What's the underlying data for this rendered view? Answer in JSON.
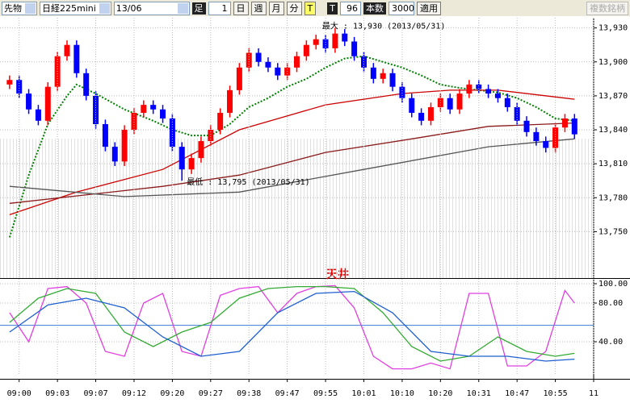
{
  "toolbar": {
    "market": "先物",
    "symbol": "日経225mini",
    "contract": "13/06",
    "bar_label": "足",
    "bar_size": "1",
    "buttons": [
      "日",
      "週",
      "月",
      "分",
      "T"
    ],
    "tick_label": "T",
    "tick_count": "96",
    "count_label": "本数",
    "count": "3000",
    "apply": "適用",
    "multi": "複数銘柄"
  },
  "chart_data": [
    {
      "type": "candlestick",
      "up_color": "#ff0000",
      "down_color": "#0000ff",
      "xlim": [
        -1,
        61
      ],
      "ylim": [
        13709,
        13939
      ],
      "grid": true,
      "yticks": [
        {
          "value": 13930,
          "label": "13,930"
        },
        {
          "value": 13900,
          "label": "13,900"
        },
        {
          "value": 13870,
          "label": "13,870"
        },
        {
          "value": 13840,
          "label": "13,840"
        },
        {
          "value": 13810,
          "label": "13,810"
        },
        {
          "value": 13780,
          "label": "13,780"
        },
        {
          "value": 13750,
          "label": "13,750"
        }
      ],
      "open": [
        13880,
        13884,
        13872,
        13858,
        13848,
        13878,
        13905,
        13915,
        13890,
        13870,
        13845,
        13825,
        13812,
        13840,
        13855,
        13862,
        13858,
        13850,
        13825,
        13805,
        13815,
        13830,
        13840,
        13855,
        13875,
        13895,
        13908,
        13900,
        13895,
        13888,
        13895,
        13905,
        13915,
        13920,
        13912,
        13925,
        13918,
        13905,
        13895,
        13885,
        13890,
        13878,
        13868,
        13855,
        13848,
        13860,
        13868,
        13858,
        13872,
        13880,
        13876,
        13872,
        13868,
        13860,
        13848,
        13838,
        13830,
        13824,
        13842,
        13850
      ],
      "high": [
        13888,
        13888,
        13876,
        13862,
        13882,
        13909,
        13919,
        13919,
        13894,
        13874,
        13849,
        13829,
        13844,
        13859,
        13866,
        13866,
        13862,
        13854,
        13829,
        13819,
        13834,
        13844,
        13859,
        13879,
        13899,
        13912,
        13912,
        13904,
        13899,
        13899,
        13909,
        13919,
        13924,
        13924,
        13930,
        13929,
        13922,
        13909,
        13899,
        13894,
        13894,
        13882,
        13872,
        13859,
        13864,
        13872,
        13872,
        13876,
        13884,
        13884,
        13880,
        13876,
        13872,
        13864,
        13852,
        13842,
        13834,
        13846,
        13854,
        13854
      ],
      "low": [
        13876,
        13868,
        13854,
        13844,
        13844,
        13874,
        13901,
        13886,
        13866,
        13841,
        13821,
        13808,
        13808,
        13836,
        13851,
        13854,
        13846,
        13821,
        13795,
        13801,
        13811,
        13826,
        13836,
        13851,
        13871,
        13891,
        13896,
        13891,
        13884,
        13884,
        13891,
        13901,
        13911,
        13908,
        13908,
        13914,
        13901,
        13891,
        13881,
        13881,
        13874,
        13864,
        13851,
        13844,
        13844,
        13856,
        13854,
        13854,
        13868,
        13872,
        13868,
        13864,
        13856,
        13844,
        13834,
        13826,
        13820,
        13820,
        13838,
        13832
      ],
      "close": [
        13884,
        13872,
        13858,
        13848,
        13878,
        13905,
        13915,
        13890,
        13870,
        13845,
        13825,
        13812,
        13840,
        13855,
        13862,
        13858,
        13850,
        13825,
        13805,
        13815,
        13830,
        13840,
        13855,
        13875,
        13895,
        13908,
        13900,
        13895,
        13888,
        13895,
        13905,
        13915,
        13920,
        13912,
        13925,
        13918,
        13905,
        13895,
        13885,
        13890,
        13878,
        13868,
        13855,
        13848,
        13860,
        13868,
        13858,
        13872,
        13880,
        13876,
        13872,
        13868,
        13860,
        13848,
        13838,
        13830,
        13824,
        13842,
        13850,
        13836
      ],
      "series": [
        {
          "color": "#008000",
          "dash": true,
          "x": [
            0,
            2,
            4,
            6,
            7,
            9,
            12,
            15,
            17,
            19,
            21,
            23,
            25,
            27,
            29,
            31,
            33,
            35,
            37,
            39,
            41,
            43,
            45,
            47,
            49,
            51,
            53,
            55,
            57,
            59
          ],
          "values": [
            13745,
            13800,
            13845,
            13870,
            13880,
            13872,
            13858,
            13848,
            13840,
            13835,
            13835,
            13845,
            13860,
            13868,
            13878,
            13885,
            13895,
            13903,
            13905,
            13900,
            13895,
            13888,
            13880,
            13877,
            13875,
            13873,
            13868,
            13860,
            13850,
            13848
          ]
        },
        {
          "color": "#cc0000",
          "dash": false,
          "x": [
            0,
            7,
            16,
            24,
            33,
            41,
            46,
            51,
            58,
            59
          ],
          "values": [
            13765,
            13785,
            13805,
            13840,
            13862,
            13872,
            13875,
            13875,
            13868,
            13867
          ]
        },
        {
          "color": "#8b1a1a",
          "dash": false,
          "x": [
            0,
            16,
            24,
            33,
            42,
            50,
            59
          ],
          "values": [
            13775,
            13790,
            13800,
            13820,
            13832,
            13843,
            13846
          ]
        },
        {
          "color": "#555555",
          "dash": false,
          "x": [
            0,
            12,
            24,
            37,
            50,
            59
          ],
          "values": [
            13790,
            13781,
            13785,
            13805,
            13825,
            13832
          ]
        }
      ],
      "annotations": {
        "max_label": "最大 : 13,930 (2013/05/31)",
        "min_label": "最低 : 13,795 (2013/05/31)"
      }
    },
    {
      "type": "line",
      "title": "天井",
      "xlim": [
        -1,
        61
      ],
      "ylim": [
        5,
        105
      ],
      "grid": true,
      "hline": 57,
      "hline_color": "#3a7bd5",
      "yticks": [
        {
          "value": 100,
          "label": "100.00"
        },
        {
          "value": 80,
          "label": "80.00"
        },
        {
          "value": 40,
          "label": "40.00"
        }
      ],
      "xticks": [
        {
          "value": 1,
          "label": "09:00"
        },
        {
          "value": 5,
          "label": "09:03"
        },
        {
          "value": 9,
          "label": "09:07"
        },
        {
          "value": 13,
          "label": "09:12"
        },
        {
          "value": 17,
          "label": "09:20"
        },
        {
          "value": 21,
          "label": "09:27"
        },
        {
          "value": 25,
          "label": "09:38"
        },
        {
          "value": 29,
          "label": "09:47"
        },
        {
          "value": 33,
          "label": "09:55"
        },
        {
          "value": 37,
          "label": "10:01"
        },
        {
          "value": 41,
          "label": "10:10"
        },
        {
          "value": 45,
          "label": "10:20"
        },
        {
          "value": 49,
          "label": "10:31"
        },
        {
          "value": 53,
          "label": "10:47"
        },
        {
          "value": 57,
          "label": "10:55"
        },
        {
          "value": 61,
          "label": "11"
        }
      ],
      "series": [
        {
          "color": "#e040e0",
          "x": [
            0,
            2,
            4,
            6,
            8,
            10,
            12,
            14,
            16,
            18,
            20,
            22,
            24,
            26,
            28,
            30,
            32,
            34,
            36,
            38,
            40,
            42,
            44,
            46,
            48,
            50,
            52,
            54,
            56,
            58,
            59
          ],
          "values": [
            70,
            40,
            95,
            97,
            80,
            30,
            25,
            80,
            90,
            30,
            25,
            88,
            95,
            97,
            70,
            90,
            97,
            98,
            75,
            25,
            12,
            12,
            18,
            12,
            90,
            90,
            15,
            15,
            30,
            93,
            80
          ]
        },
        {
          "color": "#33aa33",
          "x": [
            0,
            3,
            6,
            9,
            12,
            15,
            18,
            21,
            24,
            27,
            30,
            33,
            36,
            39,
            42,
            45,
            48,
            51,
            54,
            57,
            59
          ],
          "values": [
            60,
            85,
            95,
            90,
            50,
            35,
            50,
            60,
            85,
            95,
            97,
            97,
            95,
            70,
            35,
            20,
            25,
            45,
            30,
            25,
            28
          ]
        },
        {
          "color": "#1e5fd0",
          "x": [
            0,
            4,
            8,
            12,
            16,
            20,
            24,
            28,
            32,
            36,
            40,
            44,
            48,
            52,
            56,
            59
          ],
          "values": [
            50,
            78,
            85,
            75,
            45,
            25,
            30,
            70,
            90,
            92,
            70,
            30,
            25,
            25,
            20,
            22
          ]
        }
      ]
    }
  ]
}
